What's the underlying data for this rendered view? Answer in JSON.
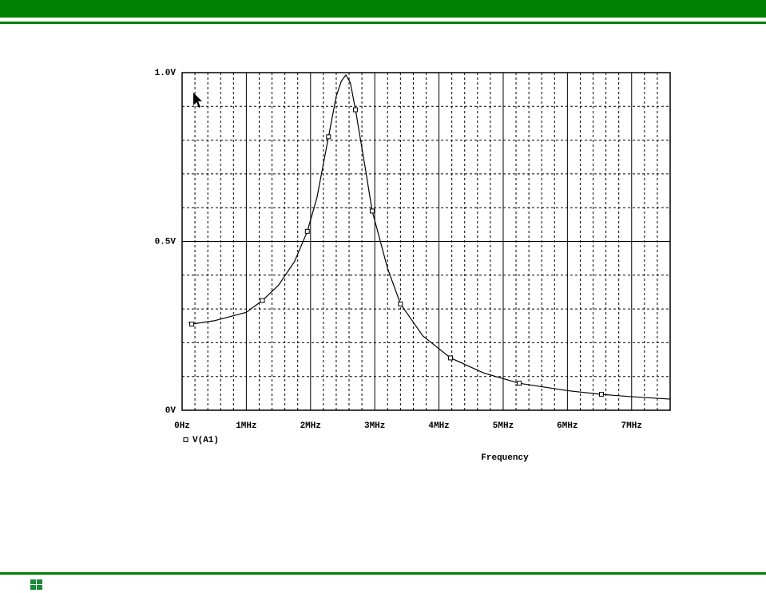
{
  "chart_data": {
    "type": "line",
    "xlabel": "Frequency",
    "xlim": [
      0,
      7.6
    ],
    "ylim": [
      0,
      1
    ],
    "xticks": [
      {
        "value": 0,
        "label": "0Hz"
      },
      {
        "value": 1,
        "label": "1MHz"
      },
      {
        "value": 2,
        "label": "2MHz"
      },
      {
        "value": 3,
        "label": "3MHz"
      },
      {
        "value": 4,
        "label": "4MHz"
      },
      {
        "value": 5,
        "label": "5MHz"
      },
      {
        "value": 6,
        "label": "6MHz"
      },
      {
        "value": 7,
        "label": "7MHz"
      }
    ],
    "yticks": [
      {
        "value": 0,
        "label": "0V"
      },
      {
        "value": 0.5,
        "label": "0.5V"
      },
      {
        "value": 1,
        "label": "1.0V"
      }
    ],
    "x_minor_ticks": [
      0.2,
      0.4,
      0.6,
      0.8,
      1.2,
      1.4,
      1.6,
      1.8,
      2.2,
      2.4,
      2.6,
      2.8,
      3.2,
      3.4,
      3.6,
      3.8,
      4.2,
      4.4,
      4.6,
      4.8,
      5.2,
      5.4,
      5.6,
      5.8,
      6.2,
      6.4,
      6.6,
      6.8,
      7.2,
      7.4
    ],
    "y_minor_ticks": [
      0.1,
      0.2,
      0.3,
      0.4,
      0.6,
      0.7,
      0.8,
      0.9
    ],
    "grid": true,
    "series": [
      {
        "name": "V(A1)",
        "color": "#000000",
        "x": [
          0.1,
          0.15,
          0.5,
          1.0,
          1.25,
          1.5,
          1.75,
          1.95,
          2.1,
          2.28,
          2.4,
          2.48,
          2.55,
          2.62,
          2.7,
          2.85,
          2.96,
          3.2,
          3.4,
          3.75,
          4.18,
          4.7,
          5.25,
          6.0,
          6.53,
          7.0,
          7.6
        ],
        "values": [
          0.26,
          0.255,
          0.265,
          0.29,
          0.325,
          0.37,
          0.44,
          0.53,
          0.63,
          0.81,
          0.93,
          0.975,
          0.993,
          0.97,
          0.89,
          0.72,
          0.59,
          0.42,
          0.315,
          0.22,
          0.155,
          0.11,
          0.08,
          0.058,
          0.047,
          0.04,
          0.033
        ],
        "marker_x": [
          0.15,
          1.25,
          1.95,
          2.28,
          2.7,
          2.96,
          3.4,
          4.18,
          5.25,
          6.53
        ],
        "marker_values": [
          0.255,
          0.325,
          0.53,
          0.81,
          0.89,
          0.59,
          0.315,
          0.155,
          0.08,
          0.047
        ]
      }
    ]
  }
}
